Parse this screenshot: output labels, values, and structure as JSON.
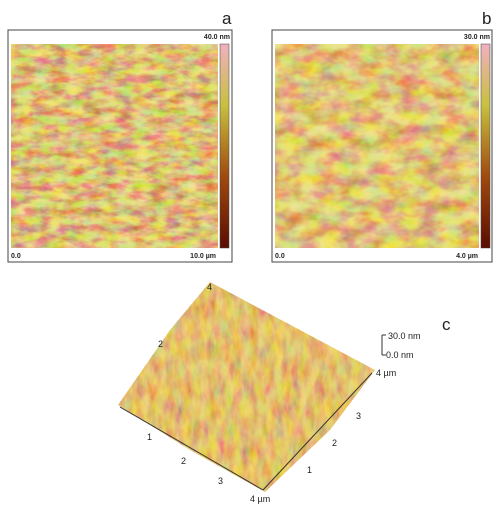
{
  "panels": [
    {
      "label": "a",
      "scale_max": "40.0 nm",
      "origin": "0.0",
      "scale_length": "10.0 µm"
    },
    {
      "label": "b",
      "scale_max": "30.0 nm",
      "origin": "0.0",
      "scale_length": "4.0 µm"
    }
  ],
  "panel_c": {
    "label": "c",
    "z_max": "30.0 nm",
    "z_min": "0.0 nm",
    "x_axis_labels": [
      "1",
      "2",
      "3",
      "4 µm"
    ],
    "y_axis_labels": [
      "1",
      "2",
      "3",
      "4 µm"
    ],
    "back_labels": [
      "2",
      "4"
    ]
  }
}
